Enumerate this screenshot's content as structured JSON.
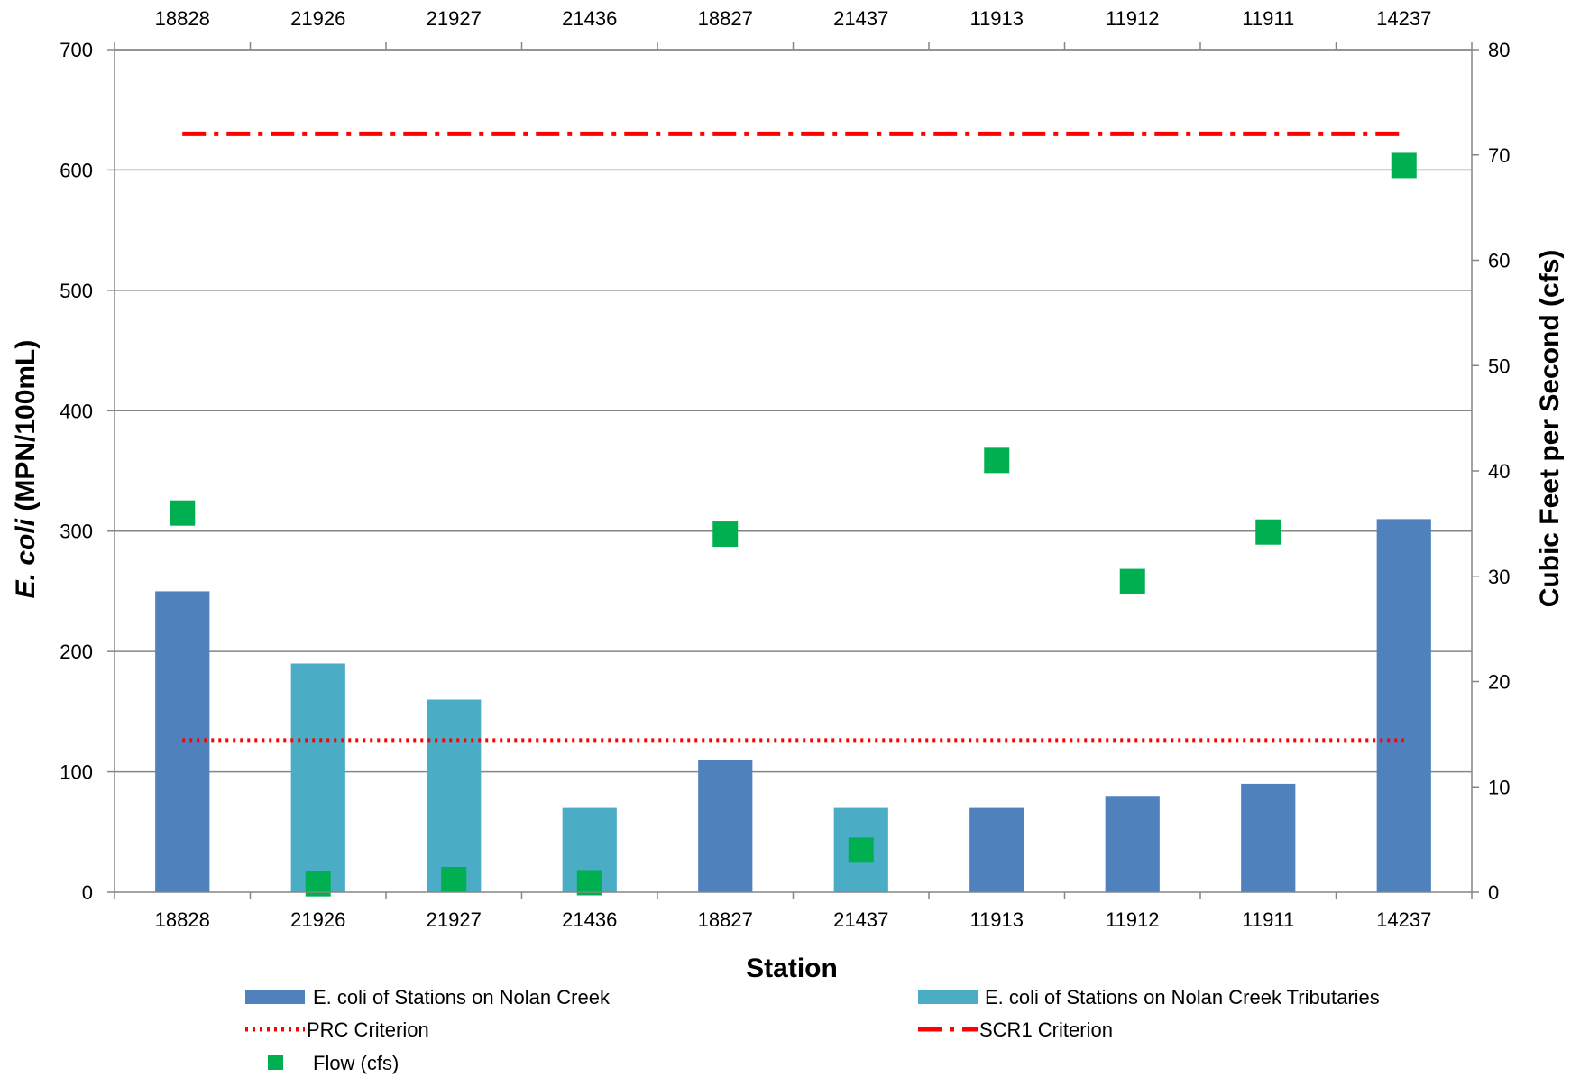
{
  "chart_data": {
    "type": "bar",
    "categories": [
      "18828",
      "21926",
      "21927",
      "21436",
      "18827",
      "21437",
      "11913",
      "11912",
      "11911",
      "14237"
    ],
    "xlabel": "Station",
    "ylabel_italic": "E. coli",
    "ylabel_rest": " (MPN/100mL)",
    "y2label": "Cubic Feet per Second (cfs)",
    "ylim": [
      0,
      700
    ],
    "y_ticks": [
      0,
      100,
      200,
      300,
      400,
      500,
      600,
      700
    ],
    "y2lim": [
      0,
      80
    ],
    "y2_ticks": [
      0,
      10,
      20,
      30,
      40,
      50,
      60,
      70,
      80
    ],
    "grid": true,
    "legend_position": "bottom",
    "series": [
      {
        "name": "E. coli of Stations on Nolan Creek",
        "kind": "bar",
        "axis": "left",
        "color": "#4F81BD",
        "values": [
          250,
          null,
          null,
          null,
          110,
          null,
          70,
          80,
          90,
          310
        ]
      },
      {
        "name": "E. coli of Stations on Nolan Creek Tributaries",
        "kind": "bar",
        "axis": "left",
        "color": "#4BACC6",
        "values": [
          null,
          190,
          160,
          70,
          null,
          70,
          null,
          null,
          null,
          null
        ]
      },
      {
        "name": "PRC Criterion",
        "kind": "line",
        "style": "dotted",
        "axis": "left",
        "color": "#FF0000",
        "values": [
          126,
          126,
          126,
          126,
          126,
          126,
          126,
          126,
          126,
          126
        ]
      },
      {
        "name": "SCR1 Criterion",
        "kind": "line",
        "style": "dash-dot",
        "axis": "left",
        "color": "#FF0000",
        "values": [
          630,
          630,
          630,
          630,
          630,
          630,
          630,
          630,
          630,
          630
        ]
      },
      {
        "name": "Flow (cfs)",
        "kind": "scatter",
        "marker": "square",
        "axis": "right",
        "color": "#00B050",
        "values": [
          36,
          0.8,
          1.2,
          0.9,
          34,
          4,
          41,
          29.5,
          34.2,
          69
        ]
      }
    ]
  }
}
